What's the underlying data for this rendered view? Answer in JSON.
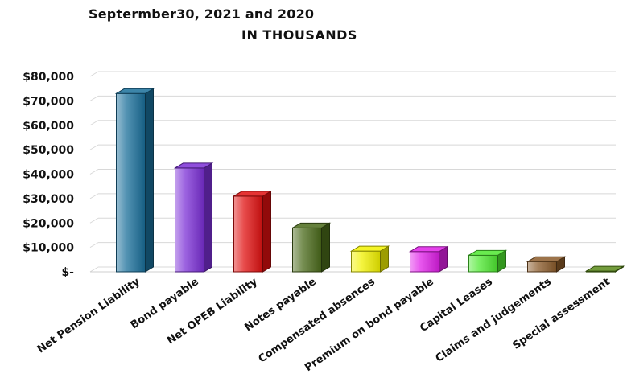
{
  "title": {
    "line1": "Septermber30, 2021 and 2020",
    "line2": "IN THOUSANDS"
  },
  "chart_data": {
    "type": "bar",
    "title": "Septermber30, 2021 and 2020 IN THOUSANDS",
    "xlabel": "",
    "ylabel": "",
    "ylim": [
      0,
      80000
    ],
    "yticks": [
      0,
      10000,
      20000,
      30000,
      40000,
      50000,
      60000,
      70000,
      80000
    ],
    "ytick_labels": [
      "$-",
      "$10,000",
      "$20,000",
      "$30,000",
      "$40,000",
      "$50,000",
      "$60,000",
      "$70,000",
      "$80,000"
    ],
    "grid": true,
    "categories": [
      "Net Pension Liability",
      "Bond payable",
      "Net OPEB Liability",
      "Notes payable",
      "Compensated absences",
      "Premium on bond payable",
      "Capital Leases",
      "Claims and judgements",
      "Special assessment"
    ],
    "values": [
      73000,
      42500,
      31000,
      18000,
      8500,
      8300,
      6800,
      4200,
      300
    ],
    "colors": [
      "#1a6f9a",
      "#7b2fd6",
      "#e01010",
      "#4a6a1a",
      "#f2f200",
      "#e020e8",
      "#4ee830",
      "#8a5a2a",
      "#5a8a1a"
    ]
  }
}
